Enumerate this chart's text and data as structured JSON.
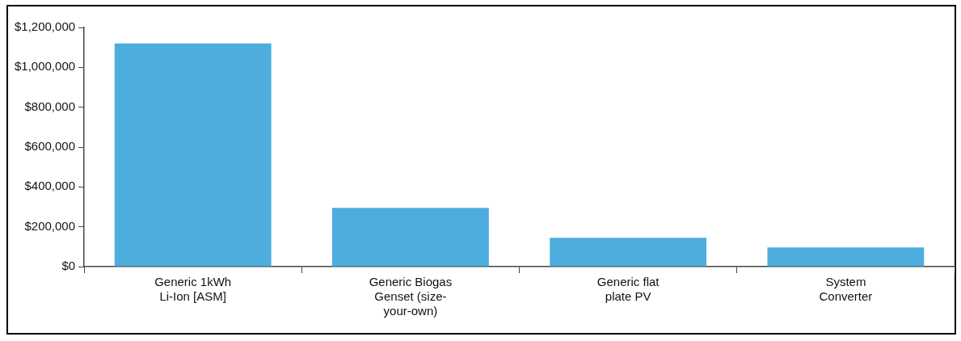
{
  "chart_data": {
    "type": "bar",
    "categories": [
      "Generic 1kWh Li-Ion [ASM]",
      "Generic Biogas Genset (size-your-own)",
      "Generic flat plate PV",
      "System Converter"
    ],
    "values": [
      1120000,
      295000,
      145000,
      96000
    ],
    "color": "#4eaddf",
    "ylim": [
      0,
      1200000
    ],
    "yticks": [
      {
        "value": 0,
        "label": "$0"
      },
      {
        "value": 200000,
        "label": "$200,000"
      },
      {
        "value": 400000,
        "label": "$400,000"
      },
      {
        "value": 600000,
        "label": "$600,000"
      },
      {
        "value": 800000,
        "label": "$800,000"
      },
      {
        "value": 1000000,
        "label": "$1,000,000"
      },
      {
        "value": 1200000,
        "label": "$1,200,000"
      }
    ],
    "grid": false,
    "legend": false
  }
}
